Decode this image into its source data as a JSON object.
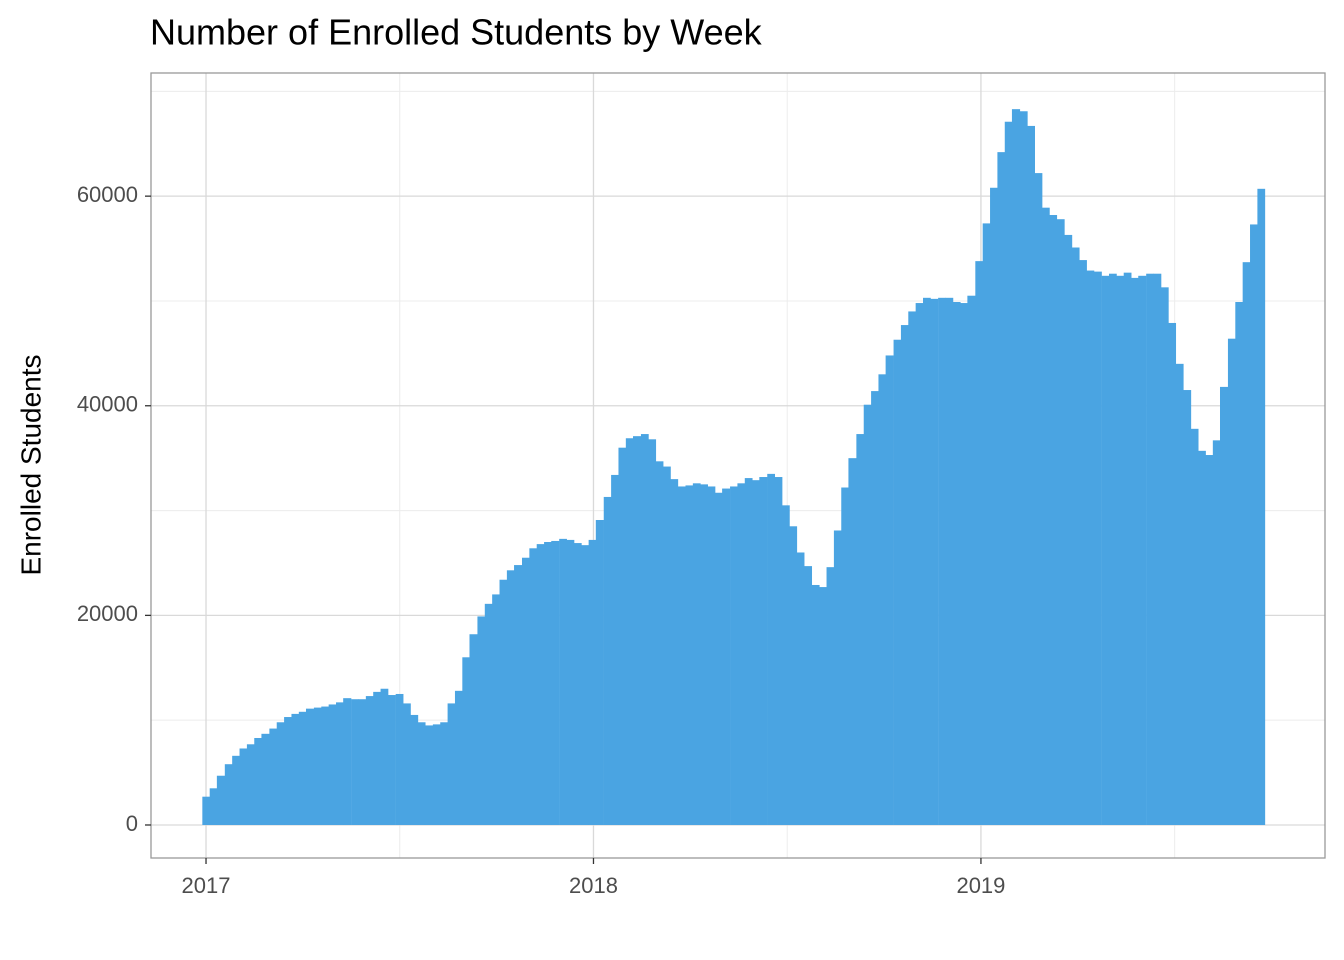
{
  "chart_data": {
    "type": "bar",
    "title": "Number of Enrolled Students by Week",
    "y_label": "Enrolled Students",
    "color": "#4aa4e2",
    "grid": true,
    "xlim": [
      2016.858,
      2019.888
    ],
    "xticks": [
      2017,
      2018,
      2019
    ],
    "x_minor_grid": [
      2017.5,
      2018.5,
      2019.5
    ],
    "ylim": [
      -3150,
      71750
    ],
    "yticks": [
      0,
      20000,
      40000,
      60000
    ],
    "y_minor_grid": [
      10000,
      30000,
      50000,
      70000
    ],
    "x": [
      2017.0,
      2017.019,
      2017.038,
      2017.058,
      2017.077,
      2017.096,
      2017.115,
      2017.134,
      2017.153,
      2017.173,
      2017.192,
      2017.211,
      2017.23,
      2017.249,
      2017.268,
      2017.288,
      2017.307,
      2017.326,
      2017.345,
      2017.364,
      2017.384,
      2017.403,
      2017.422,
      2017.441,
      2017.46,
      2017.479,
      2017.499,
      2017.518,
      2017.537,
      2017.556,
      2017.575,
      2017.595,
      2017.614,
      2017.633,
      2017.652,
      2017.671,
      2017.69,
      2017.71,
      2017.729,
      2017.748,
      2017.767,
      2017.786,
      2017.805,
      2017.825,
      2017.844,
      2017.863,
      2017.882,
      2017.901,
      2017.921,
      2017.94,
      2017.959,
      2017.978,
      2017.997,
      2018.016,
      2018.036,
      2018.055,
      2018.074,
      2018.093,
      2018.112,
      2018.132,
      2018.151,
      2018.17,
      2018.189,
      2018.208,
      2018.227,
      2018.247,
      2018.266,
      2018.285,
      2018.304,
      2018.323,
      2018.342,
      2018.362,
      2018.381,
      2018.4,
      2018.419,
      2018.438,
      2018.458,
      2018.477,
      2018.496,
      2018.515,
      2018.534,
      2018.553,
      2018.573,
      2018.592,
      2018.611,
      2018.63,
      2018.649,
      2018.668,
      2018.688,
      2018.707,
      2018.726,
      2018.745,
      2018.764,
      2018.784,
      2018.803,
      2018.822,
      2018.841,
      2018.86,
      2018.879,
      2018.899,
      2018.918,
      2018.937,
      2018.956,
      2018.975,
      2018.995,
      2019.014,
      2019.033,
      2019.052,
      2019.071,
      2019.09,
      2019.11,
      2019.129,
      2019.148,
      2019.167,
      2019.186,
      2019.205,
      2019.225,
      2019.244,
      2019.263,
      2019.282,
      2019.301,
      2019.321,
      2019.34,
      2019.359,
      2019.378,
      2019.397,
      2019.416,
      2019.436,
      2019.455,
      2019.474,
      2019.493,
      2019.512,
      2019.532,
      2019.551,
      2019.57,
      2019.589,
      2019.608,
      2019.627,
      2019.647,
      2019.666,
      2019.685,
      2019.704,
      2019.723
    ],
    "values": [
      2700,
      3500,
      4700,
      5800,
      6600,
      7300,
      7700,
      8300,
      8700,
      9200,
      9800,
      10300,
      10600,
      10800,
      11100,
      11200,
      11300,
      11500,
      11700,
      12100,
      12000,
      12000,
      12300,
      12700,
      13000,
      12400,
      12500,
      11600,
      10500,
      9800,
      9500,
      9600,
      9800,
      11600,
      12800,
      16000,
      18200,
      19900,
      21100,
      22000,
      23400,
      24300,
      24800,
      25500,
      26400,
      26800,
      27000,
      27100,
      27300,
      27200,
      26900,
      26700,
      27200,
      29100,
      31300,
      33400,
      36000,
      36900,
      37100,
      37300,
      36800,
      34700,
      34200,
      33000,
      32300,
      32400,
      32600,
      32500,
      32300,
      31700,
      32100,
      32300,
      32600,
      33100,
      32900,
      33200,
      33500,
      33200,
      30500,
      28500,
      26000,
      24700,
      22900,
      22700,
      24600,
      28100,
      32200,
      35000,
      37300,
      40100,
      41400,
      43000,
      44800,
      46300,
      47700,
      49000,
      49800,
      50300,
      50200,
      50300,
      50300,
      49900,
      49800,
      50500,
      53800,
      57400,
      60800,
      64200,
      67100,
      68300,
      68100,
      66700,
      62200,
      58900,
      58200,
      57800,
      56300,
      55100,
      53900,
      52900,
      52800,
      52400,
      52600,
      52400,
      52700,
      52200,
      52400,
      52600,
      52600,
      51300,
      47900,
      44000,
      41500,
      37800,
      35700,
      35300,
      36700,
      41800,
      46400,
      49900,
      53700,
      57300,
      60700
    ]
  }
}
